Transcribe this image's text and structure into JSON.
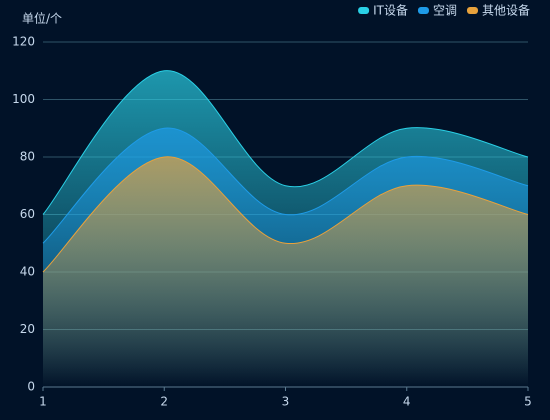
{
  "chart_data": {
    "type": "area",
    "y_label": "单位/个",
    "x": [
      1,
      2,
      3,
      4,
      5
    ],
    "xlim": [
      1,
      5
    ],
    "xticks": [
      1,
      2,
      3,
      4,
      5
    ],
    "ylim": [
      0,
      120
    ],
    "yticks": [
      0,
      20,
      40,
      60,
      80,
      100,
      120
    ],
    "grid": true,
    "smooth": true,
    "legend": "top-right",
    "series": [
      {
        "name": "IT设备",
        "color": "#2ad0e6",
        "values": [
          60,
          110,
          70,
          90,
          80
        ]
      },
      {
        "name": "空调",
        "color": "#1e9be8",
        "values": [
          50,
          90,
          60,
          80,
          70
        ]
      },
      {
        "name": "其他设备",
        "color": "#e8a23c",
        "values": [
          40,
          80,
          50,
          70,
          60
        ]
      }
    ]
  }
}
